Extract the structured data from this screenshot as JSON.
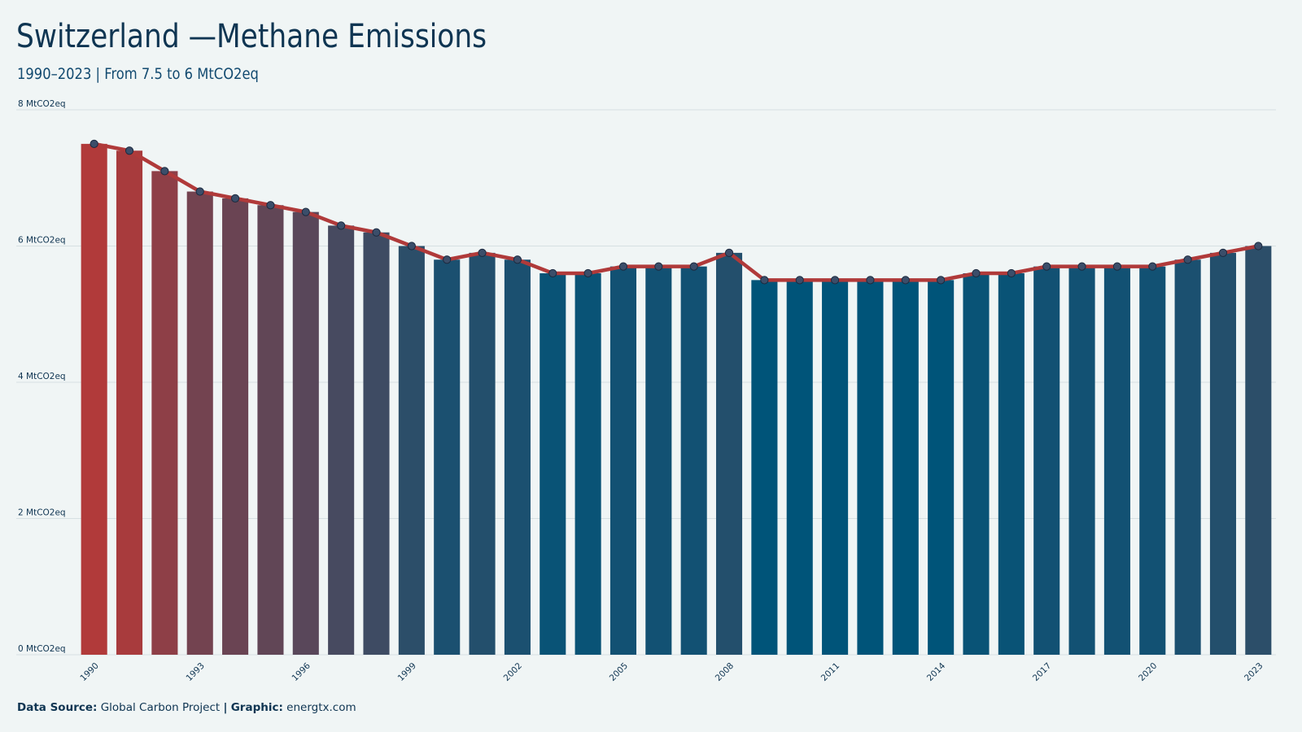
{
  "header": {
    "title": "Switzerland —Methane Emissions",
    "subtitle": "1990–2023 | From 7.5 to 6 MtCO2eq"
  },
  "footer": {
    "source_label": "Data Source:",
    "source_value": "Global Carbon Project",
    "separator": "|",
    "graphic_label": "Graphic:",
    "graphic_value": "energtx.com"
  },
  "colors": {
    "line": "#b03a3a",
    "bar_high": "#b13a3a",
    "bar_low": "#005479",
    "marker_fill": "#3b4e6a",
    "grid": "#d6e0e2",
    "background": "#f0f5f5"
  },
  "chart_data": {
    "type": "bar",
    "x": [
      1990,
      1991,
      1992,
      1993,
      1994,
      1995,
      1996,
      1997,
      1998,
      1999,
      2000,
      2001,
      2002,
      2003,
      2004,
      2005,
      2006,
      2007,
      2008,
      2009,
      2010,
      2011,
      2012,
      2013,
      2014,
      2015,
      2016,
      2017,
      2018,
      2019,
      2020,
      2021,
      2022,
      2023
    ],
    "values": [
      7.5,
      7.4,
      7.1,
      6.8,
      6.7,
      6.6,
      6.5,
      6.3,
      6.2,
      6.0,
      5.8,
      5.9,
      5.8,
      5.6,
      5.6,
      5.7,
      5.7,
      5.7,
      5.9,
      5.5,
      5.5,
      5.5,
      5.5,
      5.5,
      5.5,
      5.6,
      5.6,
      5.7,
      5.7,
      5.7,
      5.7,
      5.8,
      5.9,
      6.0
    ],
    "overlay": "line-with-markers",
    "ylim": [
      0,
      8
    ],
    "y_ticks": [
      0,
      2,
      4,
      6,
      8
    ],
    "y_tick_labels": [
      "0 MtCO2eq",
      "2 MtCO2eq",
      "4 MtCO2eq",
      "6 MtCO2eq",
      "8 MtCO2eq"
    ],
    "x_tick_labels": [
      "1990",
      "1993",
      "1996",
      "1999",
      "2002",
      "2005",
      "2008",
      "2011",
      "2014",
      "2017",
      "2020",
      "2023"
    ],
    "grid": "horizontal",
    "legend": "none"
  }
}
